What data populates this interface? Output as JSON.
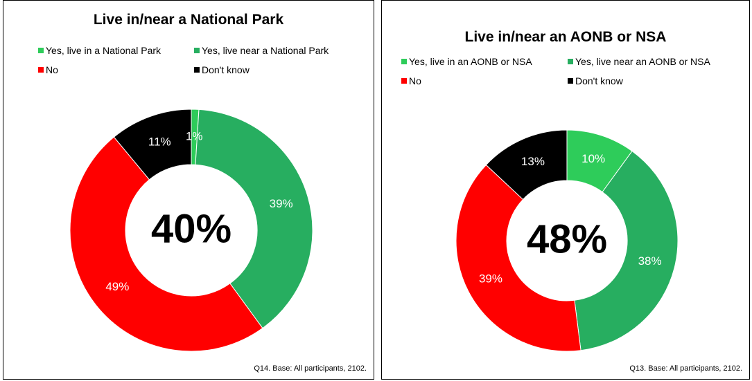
{
  "colors": {
    "yes_live": "#2ecc5a",
    "yes_near": "#27ae60",
    "no": "#ff0000",
    "dont_know": "#000000"
  },
  "chart_data": [
    {
      "type": "pie",
      "title": "Live in/near a National Park",
      "categories": [
        "Yes, live in a National Park",
        "Yes, live near a National Park",
        "No",
        "Don't know"
      ],
      "values": [
        1,
        39,
        49,
        11
      ],
      "value_labels": [
        "1%",
        "39%",
        "49%",
        "11%"
      ],
      "center_label": "40%",
      "legend_position": "top",
      "note": "Q14. Base: All participants, 2102."
    },
    {
      "type": "pie",
      "title": "Live in/near an AONB or NSA",
      "categories": [
        "Yes, live in an AONB or NSA",
        "Yes, live near an AONB or NSA",
        "No",
        "Don't know"
      ],
      "values": [
        10,
        38,
        39,
        13
      ],
      "value_labels": [
        "10%",
        "38%",
        "39%",
        "13%"
      ],
      "center_label": "48%",
      "legend_position": "top",
      "note": "Q13. Base: All participants, 2102."
    }
  ]
}
